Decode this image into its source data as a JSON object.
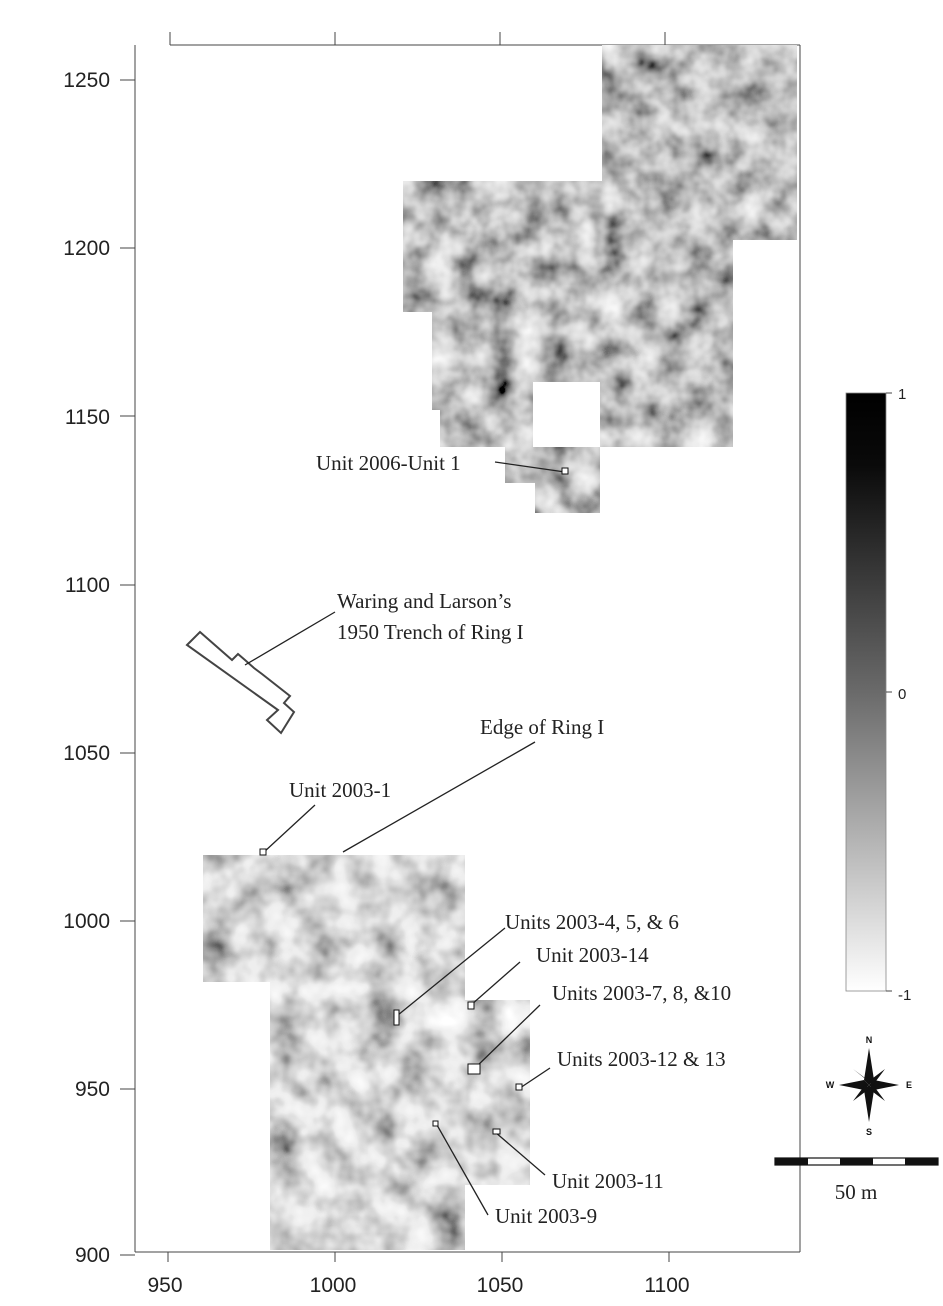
{
  "map": {
    "y_axis_ticks": [
      "1250",
      "1200",
      "1150",
      "1100",
      "1050",
      "1000",
      "950",
      "900"
    ],
    "x_axis_ticks": [
      "950",
      "1000",
      "1050",
      "1100"
    ],
    "labels": {
      "unit_2006_1": "Unit 2006-Unit 1",
      "trench_line1": "Waring and Larson’s",
      "trench_line2": "1950 Trench of Ring I",
      "edge_ring": "Edge of Ring I",
      "unit_2003_1": "Unit 2003-1",
      "units_4_5_6": "Units 2003-4, 5, & 6",
      "unit_14": "Unit 2003-14",
      "units_7_8_10": "Units 2003-7, 8, &10",
      "units_12_13": "Units 2003-12 & 13",
      "unit_11": "Unit 2003-11",
      "unit_9": "Unit 2003-9"
    },
    "colorbar": {
      "max_label": "1",
      "mid_label": "0",
      "min_label": "-1",
      "range": [
        -1,
        1
      ]
    },
    "compass": {
      "n": "N",
      "s": "S",
      "e": "E",
      "w": "W"
    },
    "scale_bar": {
      "label": "50 m",
      "length_m": 50
    },
    "colors": {
      "high": "#000000",
      "low": "#ffffff",
      "ink": "#222222"
    }
  }
}
